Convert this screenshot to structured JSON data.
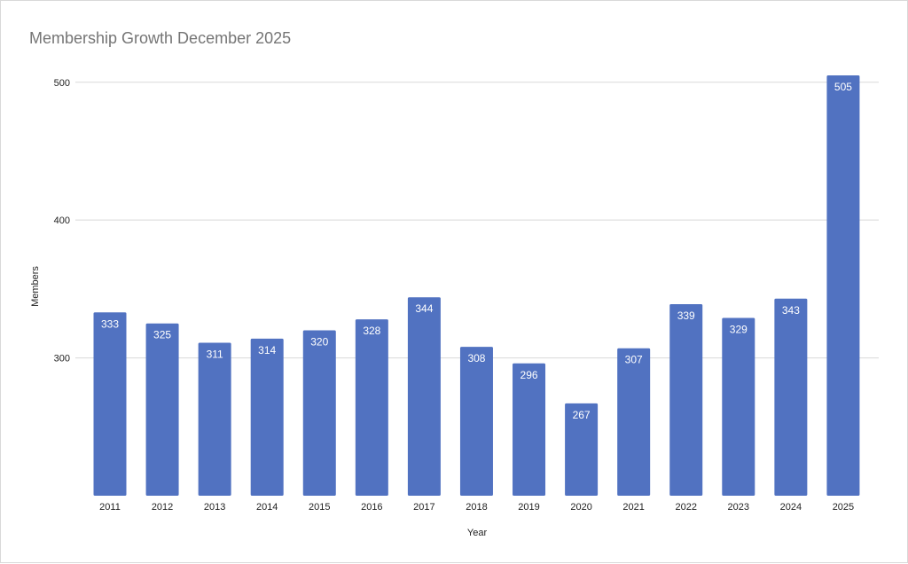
{
  "chart_data": {
    "type": "bar",
    "title": "Membership Growth December 2025",
    "xlabel": "Year",
    "ylabel": "Members",
    "categories": [
      "2011",
      "2012",
      "2013",
      "2014",
      "2015",
      "2016",
      "2017",
      "2018",
      "2019",
      "2020",
      "2021",
      "2022",
      "2023",
      "2024",
      "2025"
    ],
    "values": [
      333,
      325,
      311,
      314,
      320,
      328,
      344,
      308,
      296,
      267,
      307,
      339,
      329,
      343,
      505
    ],
    "yticks": [
      "300",
      "400",
      "500"
    ],
    "ylim": [
      200,
      505
    ],
    "grid": true,
    "legend": "none",
    "bar_color": "#5172c1",
    "grid_color": "#d9d9d9"
  }
}
